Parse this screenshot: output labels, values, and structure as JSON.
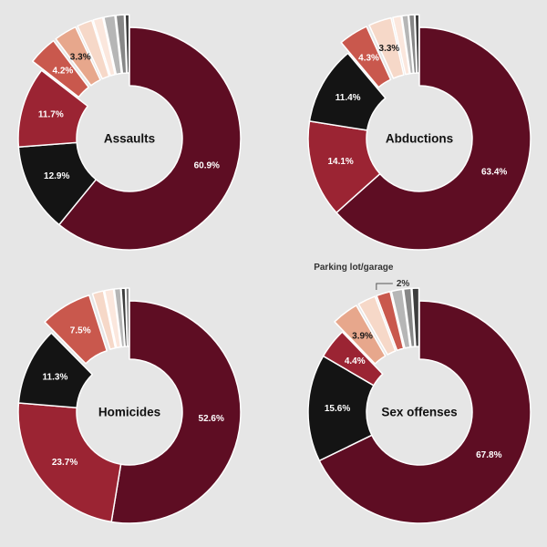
{
  "palette": {
    "background": "#e6e6e6",
    "colors": [
      "#5e0d23",
      "#141414",
      "#9b2433",
      "#c9584d",
      "#e7a78c",
      "#f6d8c8",
      "#fbe7dd",
      "#b6b6b6",
      "#878787",
      "#3d3d3d"
    ],
    "label_light": "#ffffff",
    "label_dark": "#1a1a1a"
  },
  "chart_data": [
    {
      "type": "pie",
      "variant": "donut",
      "title": "Assaults",
      "slices": [
        {
          "value": 60.9,
          "label": "60.9%",
          "color_index": 0
        },
        {
          "value": 12.9,
          "label": "12.9%",
          "color_index": 1
        },
        {
          "value": 11.7,
          "label": "11.7%",
          "color_index": 2
        },
        {
          "value": 4.2,
          "label": "4.2%",
          "color_index": 3,
          "exploded": true
        },
        {
          "value": 3.3,
          "label": "3.3%",
          "color_index": 4,
          "exploded": true
        },
        {
          "value": 2.2,
          "label": "",
          "color_index": 5,
          "exploded": true
        },
        {
          "value": 1.4,
          "label": "",
          "color_index": 6,
          "exploded": true
        },
        {
          "value": 1.6,
          "label": "",
          "color_index": 7,
          "exploded": true
        },
        {
          "value": 1.2,
          "label": "",
          "color_index": 8,
          "exploded": true
        },
        {
          "value": 0.6,
          "label": "",
          "color_index": 9,
          "exploded": true
        }
      ]
    },
    {
      "type": "pie",
      "variant": "donut",
      "title": "Abductions",
      "slices": [
        {
          "value": 63.4,
          "label": "63.4%",
          "color_index": 0
        },
        {
          "value": 14.1,
          "label": "14.1%",
          "color_index": 2
        },
        {
          "value": 11.4,
          "label": "11.4%",
          "color_index": 1
        },
        {
          "value": 4.3,
          "label": "4.3%",
          "color_index": 3,
          "exploded": true
        },
        {
          "value": 3.3,
          "label": "3.3%",
          "color_index": 5,
          "exploded": true
        },
        {
          "value": 1.2,
          "label": "",
          "color_index": 6,
          "exploded": true
        },
        {
          "value": 0.9,
          "label": "",
          "color_index": 7,
          "exploded": true
        },
        {
          "value": 0.8,
          "label": "",
          "color_index": 8,
          "exploded": true
        },
        {
          "value": 0.6,
          "label": "",
          "color_index": 9,
          "exploded": true
        }
      ]
    },
    {
      "type": "pie",
      "variant": "donut",
      "title": "Homicides",
      "slices": [
        {
          "value": 52.6,
          "label": "52.6%",
          "color_index": 0
        },
        {
          "value": 23.7,
          "label": "23.7%",
          "color_index": 2
        },
        {
          "value": 11.3,
          "label": "11.3%",
          "color_index": 1
        },
        {
          "value": 7.5,
          "label": "7.5%",
          "color_index": 3,
          "exploded": true
        },
        {
          "value": 1.6,
          "label": "",
          "color_index": 5,
          "exploded": true
        },
        {
          "value": 1.3,
          "label": "",
          "color_index": 6,
          "exploded": true
        },
        {
          "value": 0.9,
          "label": "",
          "color_index": 7,
          "exploded": true
        },
        {
          "value": 0.6,
          "label": "",
          "color_index": 9,
          "exploded": true
        },
        {
          "value": 0.5,
          "label": "",
          "color_index": 8,
          "exploded": true
        }
      ]
    },
    {
      "type": "pie",
      "variant": "donut",
      "title": "Sex offenses",
      "callout": {
        "name": "Parking lot/garage",
        "value_label": "2%"
      },
      "slices": [
        {
          "value": 67.8,
          "label": "67.8%",
          "color_index": 0
        },
        {
          "value": 15.6,
          "label": "15.6%",
          "color_index": 1
        },
        {
          "value": 4.4,
          "label": "4.4%",
          "color_index": 2
        },
        {
          "value": 3.9,
          "label": "3.9%",
          "color_index": 4,
          "exploded": true
        },
        {
          "value": 2.6,
          "label": "",
          "color_index": 5,
          "exploded": true
        },
        {
          "value": 2.0,
          "label": "",
          "color_index": 3,
          "exploded": true,
          "callout": true
        },
        {
          "value": 1.6,
          "label": "",
          "color_index": 7,
          "exploded": true
        },
        {
          "value": 1.1,
          "label": "",
          "color_index": 8,
          "exploded": true
        },
        {
          "value": 1.0,
          "label": "",
          "color_index": 9,
          "exploded": true
        }
      ]
    }
  ]
}
